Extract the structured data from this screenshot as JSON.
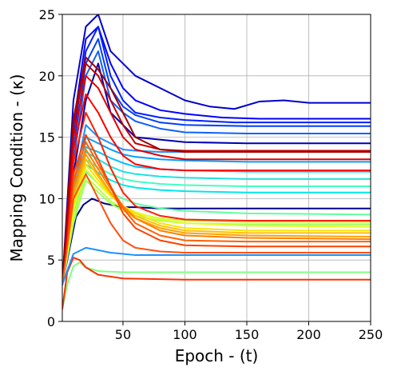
{
  "chart_data": {
    "type": "line",
    "title": "",
    "xlabel": "Epoch - (t)",
    "ylabel": "Mapping Condition - (κ)",
    "xlim": [
      1,
      250
    ],
    "ylim": [
      0,
      25
    ],
    "xticks": [
      50,
      100,
      150,
      200,
      250
    ],
    "xtick_labels": [
      "50",
      "100",
      "150",
      "200",
      "250"
    ],
    "yticks": [
      0,
      5,
      10,
      15,
      20,
      25
    ],
    "ytick_labels": [
      "0",
      "5",
      "10",
      "15",
      "20",
      "25"
    ],
    "grid": true,
    "legend": "none",
    "colormap": "jet",
    "series": [
      {
        "color": "#0000cd",
        "x": [
          1,
          10,
          20,
          30,
          40,
          50,
          60,
          80,
          100,
          120,
          140,
          160,
          180,
          200,
          250
        ],
        "y": [
          3,
          18,
          24,
          25,
          22,
          21,
          20,
          19,
          18,
          17.5,
          17.3,
          17.9,
          18.0,
          17.8,
          17.8
        ]
      },
      {
        "color": "#0000ff",
        "x": [
          1,
          10,
          20,
          30,
          40,
          50,
          60,
          80,
          100,
          130,
          160,
          250
        ],
        "y": [
          3,
          16,
          23,
          24,
          21,
          19,
          18,
          17.2,
          16.9,
          16.6,
          16.5,
          16.5
        ]
      },
      {
        "color": "#0020ff",
        "x": [
          1,
          10,
          20,
          30,
          40,
          50,
          60,
          80,
          100,
          140,
          250
        ],
        "y": [
          3,
          15,
          22,
          24,
          20,
          18,
          17,
          16.6,
          16.4,
          16.2,
          16.2
        ]
      },
      {
        "color": "#0040ff",
        "x": [
          1,
          10,
          20,
          30,
          40,
          50,
          60,
          80,
          100,
          150,
          250
        ],
        "y": [
          3,
          14,
          21,
          23,
          19,
          17.5,
          16.8,
          16.2,
          16.0,
          15.9,
          15.9
        ]
      },
      {
        "color": "#1060ff",
        "x": [
          1,
          10,
          20,
          30,
          40,
          50,
          60,
          80,
          100,
          150,
          250
        ],
        "y": [
          3,
          13,
          20,
          22,
          18,
          17,
          16.3,
          15.7,
          15.4,
          15.3,
          15.3
        ]
      },
      {
        "color": "#0000b0",
        "x": [
          1,
          10,
          20,
          30,
          40,
          50,
          60,
          80,
          100,
          150,
          250
        ],
        "y": [
          3,
          12,
          18,
          21,
          17,
          16,
          15,
          14.8,
          14.6,
          14.5,
          14.5
        ]
      },
      {
        "color": "#00008b",
        "x": [
          1,
          8,
          12,
          18,
          25,
          35,
          45,
          50,
          60,
          80,
          100,
          150,
          250
        ],
        "y": [
          3,
          6.5,
          8.5,
          9.5,
          10,
          9.6,
          9.4,
          9.3,
          9.3,
          9.2,
          9.2,
          9.2,
          9.2
        ]
      },
      {
        "color": "#1e90ff",
        "x": [
          1,
          10,
          20,
          30,
          40,
          50,
          60,
          80,
          100,
          150,
          250
        ],
        "y": [
          3,
          11,
          16,
          15,
          14.5,
          14,
          13.9,
          13.8,
          13.8,
          13.8,
          13.8
        ]
      },
      {
        "color": "#00a0ff",
        "x": [
          1,
          10,
          20,
          30,
          40,
          50,
          60,
          80,
          100,
          150,
          250
        ],
        "y": [
          3,
          10.5,
          15,
          14.5,
          14,
          13.6,
          13.4,
          13.2,
          13.1,
          13.0,
          13.0
        ]
      },
      {
        "color": "#00c0ff",
        "x": [
          1,
          10,
          20,
          30,
          40,
          50,
          60,
          80,
          100,
          150,
          250
        ],
        "y": [
          3,
          10,
          14.2,
          13.8,
          13.3,
          12.9,
          12.6,
          12.4,
          12.3,
          12.2,
          12.2
        ]
      },
      {
        "color": "#20e0e0",
        "x": [
          1,
          10,
          20,
          30,
          40,
          50,
          60,
          80,
          100,
          150,
          250
        ],
        "y": [
          3,
          9.5,
          13.8,
          13.2,
          12.6,
          12.2,
          12.0,
          11.8,
          11.7,
          11.6,
          11.6
        ]
      },
      {
        "color": "#40ffc0",
        "x": [
          1,
          10,
          20,
          30,
          40,
          50,
          60,
          80,
          100,
          150,
          250
        ],
        "y": [
          3,
          9,
          13.2,
          12.5,
          12,
          11.6,
          11.4,
          11.2,
          11.1,
          11.0,
          11.0
        ]
      },
      {
        "color": "#00e8e8",
        "x": [
          1,
          10,
          20,
          30,
          40,
          50,
          60,
          80,
          100,
          150,
          250
        ],
        "y": [
          3,
          8.5,
          12.8,
          12.1,
          11.5,
          11.1,
          10.9,
          10.7,
          10.6,
          10.5,
          10.5
        ]
      },
      {
        "color": "#60ffa0",
        "x": [
          1,
          10,
          20,
          30,
          40,
          50,
          60,
          80,
          100,
          150,
          250
        ],
        "y": [
          3,
          8,
          12.2,
          11.2,
          10.5,
          10.0,
          9.6,
          9.2,
          9.0,
          8.8,
          8.7
        ]
      },
      {
        "color": "#80ff80",
        "x": [
          1,
          5,
          10,
          15,
          20,
          30,
          50,
          100,
          250
        ],
        "y": [
          1,
          3,
          4.5,
          4.8,
          4.4,
          4.1,
          4.0,
          4.0,
          4.0
        ]
      },
      {
        "color": "#a0ff60",
        "x": [
          1,
          10,
          20,
          30,
          40,
          50,
          60,
          80,
          100,
          150,
          250
        ],
        "y": [
          3,
          8,
          11.5,
          10.5,
          9.6,
          9.0,
          8.6,
          8.2,
          8.0,
          7.9,
          7.9
        ]
      },
      {
        "color": "#c0ff40",
        "x": [
          1,
          10,
          20,
          30,
          40,
          50,
          60,
          80,
          100,
          150,
          250
        ],
        "y": [
          3,
          8.5,
          11.8,
          10.8,
          9.8,
          9.2,
          8.8,
          8.4,
          8.2,
          8.1,
          8.1
        ]
      },
      {
        "color": "#e0ff20",
        "x": [
          1,
          10,
          20,
          30,
          40,
          50,
          60,
          80,
          100,
          150,
          250
        ],
        "y": [
          3,
          9,
          12.4,
          11.2,
          10.2,
          9.4,
          8.9,
          8.3,
          8.0,
          7.8,
          7.7
        ]
      },
      {
        "color": "#ffe000",
        "x": [
          1,
          10,
          20,
          30,
          40,
          50,
          60,
          80,
          100,
          150,
          250
        ],
        "y": [
          3,
          9.5,
          12.8,
          11.5,
          10.3,
          9.4,
          8.8,
          8.0,
          7.6,
          7.4,
          7.4
        ]
      },
      {
        "color": "#ffc000",
        "x": [
          1,
          10,
          20,
          30,
          40,
          50,
          60,
          80,
          100,
          150,
          250
        ],
        "y": [
          3,
          10,
          13.2,
          11.8,
          10.4,
          9.3,
          8.6,
          7.8,
          7.4,
          7.2,
          7.2
        ]
      },
      {
        "color": "#ffa000",
        "x": [
          1,
          10,
          20,
          30,
          40,
          50,
          60,
          80,
          100,
          150,
          250
        ],
        "y": [
          3,
          10.5,
          13.6,
          12.0,
          10.5,
          9.2,
          8.4,
          7.6,
          7.2,
          7.0,
          6.9
        ]
      },
      {
        "color": "#ff8000",
        "x": [
          1,
          10,
          20,
          30,
          40,
          50,
          60,
          80,
          100,
          150,
          250
        ],
        "y": [
          3,
          11,
          14.0,
          12.4,
          10.8,
          9.4,
          8.4,
          7.4,
          7.0,
          6.8,
          6.7
        ]
      },
      {
        "color": "#ff6000",
        "x": [
          1,
          10,
          20,
          30,
          40,
          50,
          60,
          80,
          100,
          150,
          250
        ],
        "y": [
          3,
          11.5,
          14.6,
          12.8,
          11.0,
          9.2,
          8.0,
          7.0,
          6.6,
          6.5,
          6.5
        ]
      },
      {
        "color": "#ff4000",
        "x": [
          1,
          10,
          20,
          30,
          40,
          50,
          60,
          80,
          100,
          150,
          250
        ],
        "y": [
          3,
          12,
          15.2,
          13.2,
          11.0,
          8.8,
          7.6,
          6.6,
          6.2,
          6.1,
          6.1
        ]
      },
      {
        "color": "#ff2000",
        "x": [
          1,
          10,
          20,
          30,
          40,
          50,
          60,
          80,
          100,
          150,
          250
        ],
        "y": [
          3,
          13,
          17,
          15,
          12.5,
          10.5,
          9.4,
          8.6,
          8.3,
          8.2,
          8.2
        ]
      },
      {
        "color": "#ff0000",
        "x": [
          1,
          10,
          20,
          30,
          40,
          50,
          60,
          80,
          100,
          150,
          250
        ],
        "y": [
          3,
          14,
          18.5,
          17,
          15,
          13.5,
          12.8,
          12.4,
          12.3,
          12.3,
          12.3
        ]
      },
      {
        "color": "#e00000",
        "x": [
          1,
          10,
          20,
          30,
          40,
          50,
          60,
          80,
          100,
          150,
          250
        ],
        "y": [
          3,
          15,
          20,
          19,
          17,
          15,
          14,
          13.5,
          13.2,
          13.2,
          13.2
        ]
      },
      {
        "color": "#c00000",
        "x": [
          1,
          10,
          20,
          30,
          40,
          50,
          60,
          80,
          100,
          150,
          250
        ],
        "y": [
          3,
          16,
          21,
          20,
          18,
          16,
          14.5,
          14.0,
          13.9,
          13.9,
          13.9
        ]
      },
      {
        "color": "#a00000",
        "x": [
          1,
          10,
          20,
          30,
          40,
          50,
          60,
          80,
          100,
          150,
          250
        ],
        "y": [
          3,
          16.5,
          21.5,
          20.5,
          19,
          17,
          15,
          14.0,
          13.8,
          13.8,
          13.8
        ]
      },
      {
        "color": "#ff3000",
        "x": [
          1,
          5,
          10,
          15,
          20,
          30,
          50,
          100,
          250
        ],
        "y": [
          1,
          4,
          5.2,
          5.0,
          4.4,
          3.8,
          3.5,
          3.4,
          3.4
        ]
      },
      {
        "color": "#ff5010",
        "x": [
          1,
          10,
          20,
          30,
          40,
          50,
          60,
          80,
          100,
          150,
          250
        ],
        "y": [
          3,
          10,
          12.0,
          10.0,
          8.0,
          6.6,
          6.0,
          5.7,
          5.6,
          5.6,
          5.6
        ]
      },
      {
        "color": "#1e90ff",
        "x": [
          1,
          10,
          20,
          30,
          40,
          50,
          60,
          80,
          100,
          150,
          250
        ],
        "y": [
          3,
          5.5,
          6.0,
          5.8,
          5.6,
          5.5,
          5.4,
          5.4,
          5.4,
          5.4,
          5.4
        ]
      }
    ]
  }
}
